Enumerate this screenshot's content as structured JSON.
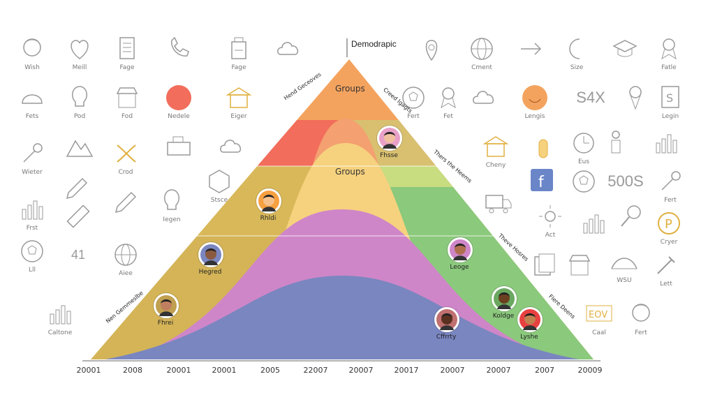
{
  "title": "Demodrapic",
  "band_labels": {
    "top": "Groups",
    "middle": "Groups"
  },
  "slant_labels": {
    "left_upper": "Hend Geceoves",
    "left_lower": "Nen Gemmeslbe",
    "right_upper": "Creed Igagts",
    "right_mid": "Thers the Heems",
    "right_lower_a": "Theve Hosres",
    "right_lower_b": "Flere Deens"
  },
  "x_axis_ticks": [
    "20001",
    "2008",
    "20001",
    "20001",
    "2005",
    "22007",
    "20007",
    "20017",
    "20007",
    "20007",
    "2007",
    "20009"
  ],
  "chart_data": {
    "type": "area",
    "x": [
      "20001",
      "2008",
      "20001",
      "20001",
      "2005",
      "22007",
      "20007",
      "20017",
      "20007",
      "20007",
      "2007",
      "20009"
    ],
    "title": "Demodrapic",
    "series": [
      {
        "name": "Groups",
        "color": "#f4a35e"
      },
      {
        "name": "",
        "color": "#f07060"
      },
      {
        "name": "Groups",
        "color": "#f6d27e"
      },
      {
        "name": "",
        "color": "#d6b655"
      },
      {
        "name": "",
        "color": "#cf86c8"
      },
      {
        "name": "",
        "color": "#8bc97c"
      },
      {
        "name": "",
        "color": "#7a86c0"
      }
    ]
  },
  "avatars": [
    {
      "name": "Fhsse",
      "bg": "#e8a0c8",
      "face": "#f0c0a0"
    },
    {
      "name": "Rhldi",
      "bg": "#f6a040",
      "face": "#f6c08a"
    },
    {
      "name": "Hegred",
      "bg": "#7a86c0",
      "face": "#8a5a40"
    },
    {
      "name": "Fhrei",
      "bg": "#c0a050",
      "face": "#c08060"
    },
    {
      "name": "Leoge",
      "bg": "#cf86c8",
      "face": "#b07050"
    },
    {
      "name": "Koldge",
      "bg": "#6aa860",
      "face": "#6a4020"
    },
    {
      "name": "Cffrrty",
      "bg": "#c07070",
      "face": "#5a3020"
    },
    {
      "name": "Lyshe",
      "bg": "#e84040",
      "face": "#c08050"
    }
  ],
  "icons": [
    {
      "name": "Wish",
      "kind": "face"
    },
    {
      "name": "Meill",
      "kind": "heart"
    },
    {
      "name": "Fage",
      "kind": "document"
    },
    {
      "name": "",
      "kind": "phone"
    },
    {
      "name": "Fage",
      "kind": "building"
    },
    {
      "name": "",
      "kind": "cloud"
    },
    {
      "name": "",
      "kind": "pin"
    },
    {
      "name": "Cment",
      "kind": "globe"
    },
    {
      "name": "",
      "kind": "arrow"
    },
    {
      "name": "Size",
      "kind": "half-circle"
    },
    {
      "name": "",
      "kind": "grad-cap"
    },
    {
      "name": "Fatle",
      "kind": "ribbon"
    },
    {
      "name": "Fets",
      "kind": "helmet"
    },
    {
      "name": "Pod",
      "kind": "bulb"
    },
    {
      "name": "Fod",
      "kind": "store"
    },
    {
      "name": "Nedele",
      "kind": "dot-red"
    },
    {
      "name": "Eiger",
      "kind": "bank"
    },
    {
      "name": "Fert",
      "kind": "soccer"
    },
    {
      "name": "Fet",
      "kind": "award"
    },
    {
      "name": "",
      "kind": "cloud-up"
    },
    {
      "name": "Lengis",
      "kind": "dot-orange"
    },
    {
      "name": "S4X",
      "kind": "text"
    },
    {
      "name": "",
      "kind": "ice-cream"
    },
    {
      "name": "Legin",
      "kind": "s-doc"
    },
    {
      "name": "Wieter",
      "kind": "key"
    },
    {
      "name": "",
      "kind": "mountain"
    },
    {
      "name": "Crod",
      "kind": "scissors"
    },
    {
      "name": "",
      "kind": "desk"
    },
    {
      "name": "",
      "kind": "cloud"
    },
    {
      "name": "Cheny",
      "kind": "house"
    },
    {
      "name": "",
      "kind": "bottle"
    },
    {
      "name": "Eus",
      "kind": "clock"
    },
    {
      "name": "",
      "kind": "person"
    },
    {
      "name": "",
      "kind": "bars-cloud"
    },
    {
      "name": "",
      "kind": "pencil"
    },
    {
      "name": "",
      "kind": "ruler"
    },
    {
      "name": "",
      "kind": "facebook"
    },
    {
      "name": "",
      "kind": "soccer"
    },
    {
      "name": "500S",
      "kind": "text"
    },
    {
      "name": "Fert",
      "kind": "key"
    },
    {
      "name": "Frst",
      "kind": "bars"
    },
    {
      "name": "",
      "kind": "wand"
    },
    {
      "name": "Iegen",
      "kind": "bulb-tall"
    },
    {
      "name": "Stsce",
      "kind": "box-icon"
    },
    {
      "name": "",
      "kind": "truck"
    },
    {
      "name": "Act",
      "kind": "sun"
    },
    {
      "name": "",
      "kind": "chart-up"
    },
    {
      "name": "",
      "kind": "magnifier"
    },
    {
      "name": "Cryer",
      "kind": "p-circle"
    },
    {
      "name": "Lll",
      "kind": "soccer"
    },
    {
      "name": "41",
      "kind": "text-small"
    },
    {
      "name": "Aiee",
      "kind": "globe"
    },
    {
      "name": "",
      "kind": "cards"
    },
    {
      "name": "",
      "kind": "shop"
    },
    {
      "name": "WSU",
      "kind": "bridge"
    },
    {
      "name": "Lett",
      "kind": "tools"
    },
    {
      "name": "Caltone",
      "kind": "bars"
    },
    {
      "name": "Caal",
      "kind": "eov"
    },
    {
      "name": "Fert",
      "kind": "face"
    }
  ]
}
